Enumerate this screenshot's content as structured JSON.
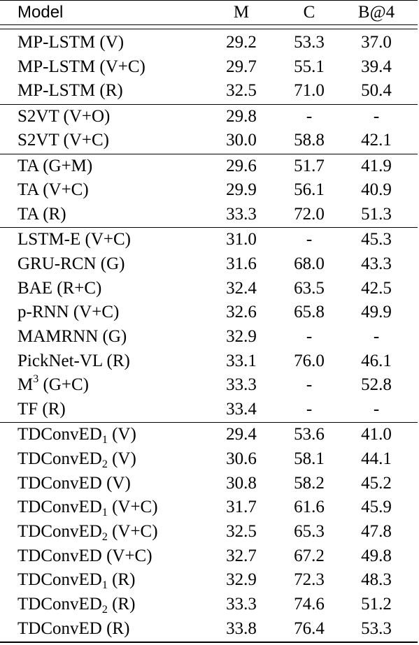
{
  "header": {
    "model": "Model",
    "m": "M",
    "c": "C",
    "b4": "B@4"
  },
  "groups": [
    {
      "rows": [
        {
          "model": "MP-LSTM (V)",
          "m": "29.2",
          "c": "53.3",
          "b4": "37.0"
        },
        {
          "model": "MP-LSTM (V+C)",
          "m": "29.7",
          "c": "55.1",
          "b4": "39.4"
        },
        {
          "model": "MP-LSTM (R)",
          "m": "32.5",
          "c": "71.0",
          "b4": "50.4"
        }
      ]
    },
    {
      "rows": [
        {
          "model": "S2VT (V+O)",
          "m": "29.8",
          "c": "-",
          "b4": "-"
        },
        {
          "model": "S2VT (V+C)",
          "m": "30.0",
          "c": "58.8",
          "b4": "42.1"
        }
      ]
    },
    {
      "rows": [
        {
          "model": "TA (G+M)",
          "m": "29.6",
          "c": "51.7",
          "b4": "41.9"
        },
        {
          "model": "TA (V+C)",
          "m": "29.9",
          "c": "56.1",
          "b4": "40.9"
        },
        {
          "model": "TA (R)",
          "m": "33.3",
          "c": "72.0",
          "b4": "51.3"
        }
      ]
    },
    {
      "rows": [
        {
          "model": "LSTM-E (V+C)",
          "m": "31.0",
          "c": "-",
          "b4": "45.3"
        },
        {
          "model": "GRU-RCN (G)",
          "m": "31.6",
          "c": "68.0",
          "b4": "43.3"
        },
        {
          "model": "BAE (R+C)",
          "m": "32.4",
          "c": "63.5",
          "b4": "42.5"
        },
        {
          "model": "p-RNN (V+C)",
          "m": "32.6",
          "c": "65.8",
          "b4": "49.9"
        },
        {
          "model": "MAMRNN (G)",
          "m": "32.9",
          "c": "-",
          "b4": "-"
        },
        {
          "model": "PickNet-VL (R)",
          "m": "33.1",
          "c": "76.0",
          "b4": "46.1"
        },
        {
          "model_base": "M",
          "model_sup": "3",
          "model_rest": " (G+C)",
          "m": "33.3",
          "c": "-",
          "b4": "52.8"
        },
        {
          "model": "TF (R)",
          "m": "33.4",
          "c": "-",
          "b4": "-"
        }
      ]
    },
    {
      "rows": [
        {
          "model_base": "TDConvED",
          "model_sub": "1",
          "model_rest": " (V)",
          "m": "29.4",
          "c": "53.6",
          "b4": "41.0"
        },
        {
          "model_base": "TDConvED",
          "model_sub": "2",
          "model_rest": " (V)",
          "m": "30.6",
          "c": "58.1",
          "b4": "44.1"
        },
        {
          "model": "TDConvED (V)",
          "m": "30.8",
          "c": "58.2",
          "b4": "45.2"
        },
        {
          "model_base": "TDConvED",
          "model_sub": "1",
          "model_rest": " (V+C)",
          "m": "31.7",
          "c": "61.6",
          "b4": "45.9"
        },
        {
          "model_base": "TDConvED",
          "model_sub": "2",
          "model_rest": " (V+C)",
          "m": "32.5",
          "c": "65.3",
          "b4": "47.8"
        },
        {
          "model": "TDConvED (V+C)",
          "m": "32.7",
          "c": "67.2",
          "b4": "49.8"
        },
        {
          "model_base": "TDConvED",
          "model_sub": "1",
          "model_rest": " (R)",
          "m": "32.9",
          "c": "72.3",
          "b4": "48.3"
        },
        {
          "model_base": "TDConvED",
          "model_sub": "2",
          "model_rest": " (R)",
          "m": "33.3",
          "c": "74.6",
          "b4": "51.2"
        },
        {
          "model": "TDConvED (R)",
          "m": "33.8",
          "c": "76.4",
          "b4": "53.3"
        }
      ]
    }
  ]
}
